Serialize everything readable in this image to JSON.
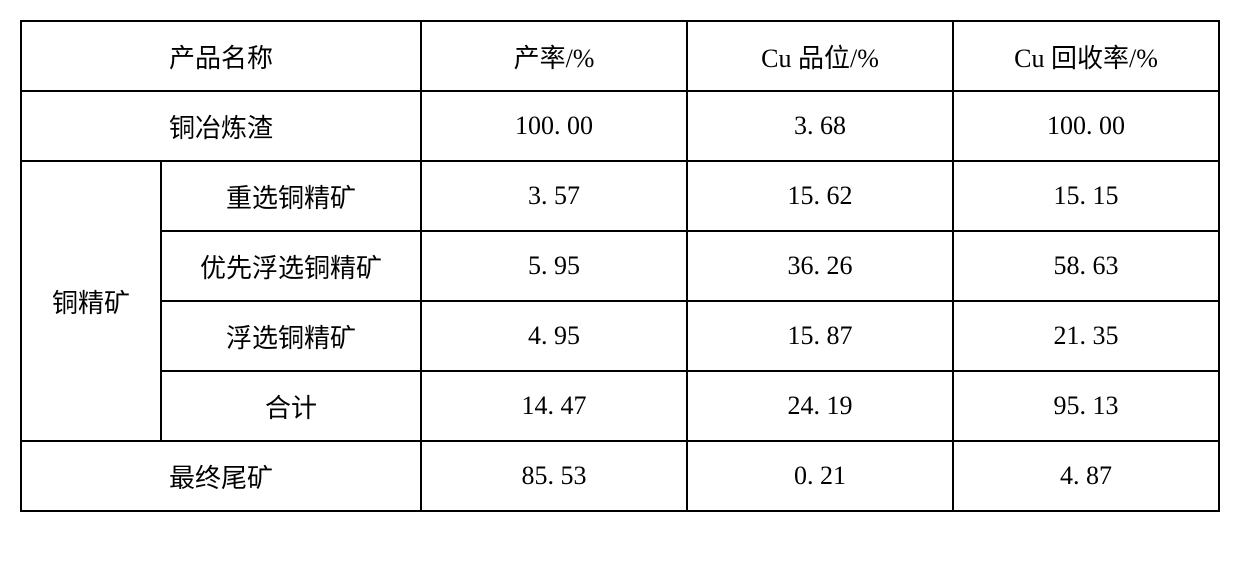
{
  "table": {
    "headers": {
      "product_name": "产品名称",
      "yield": "产率/%",
      "cu_grade": "Cu 品位/%",
      "cu_recovery": "Cu 回收率/%"
    },
    "rows": {
      "smelting_slag": {
        "name": "铜冶炼渣",
        "yield": "100. 00",
        "grade": "3. 68",
        "recovery": "100. 00"
      },
      "concentrate_group_label": "铜精矿",
      "gravity": {
        "name": "重选铜精矿",
        "yield": "3. 57",
        "grade": "15. 62",
        "recovery": "15. 15"
      },
      "priority_flotation": {
        "name": "优先浮选铜精矿",
        "yield": "5. 95",
        "grade": "36. 26",
        "recovery": "58. 63"
      },
      "flotation": {
        "name": "浮选铜精矿",
        "yield": "4. 95",
        "grade": "15. 87",
        "recovery": "21. 35"
      },
      "total": {
        "name": "合计",
        "yield": "14. 47",
        "grade": "24. 19",
        "recovery": "95. 13"
      },
      "final_tailings": {
        "name": "最终尾矿",
        "yield": "85. 53",
        "grade": "0. 21",
        "recovery": "4. 87"
      }
    }
  }
}
